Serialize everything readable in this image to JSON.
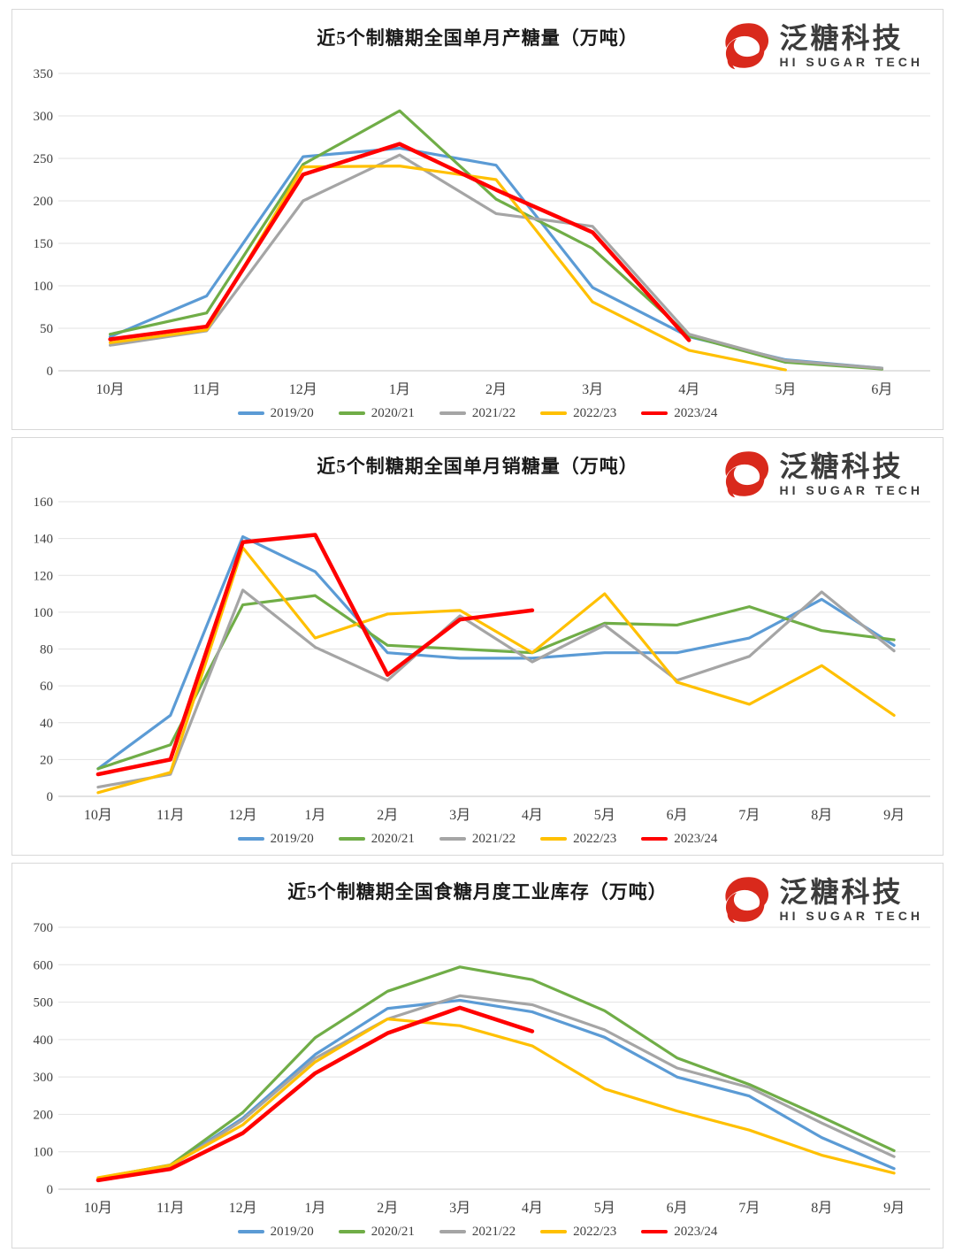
{
  "brand": {
    "name_cn": "泛糖科技",
    "name_en": "HI SUGAR TECH",
    "logo_red": "#d9291c",
    "text_color": "#3c3c3c"
  },
  "palette": {
    "blue": "#5B9BD5",
    "green": "#70AD47",
    "gray": "#A5A5A5",
    "yellow": "#FFC000",
    "red": "#FF0000",
    "gridline": "#e2e2e2",
    "axis_line": "#c6c6c6"
  },
  "chart_data": [
    {
      "type": "line",
      "title": "近5个制糖期全国单月产糖量（万吨）",
      "categories": [
        "10月",
        "11月",
        "12月",
        "1月",
        "2月",
        "3月",
        "4月",
        "5月",
        "6月"
      ],
      "ylim": [
        0,
        350
      ],
      "yticks": [
        0,
        50,
        100,
        150,
        200,
        250,
        300,
        350
      ],
      "grid": true,
      "legend_position": "bottom",
      "series": [
        {
          "name": "2019/20",
          "color": "#5B9BD5",
          "values": [
            40,
            88,
            252,
            262,
            242,
            98,
            40,
            13,
            3
          ]
        },
        {
          "name": "2020/21",
          "color": "#70AD47",
          "values": [
            43,
            68,
            243,
            306,
            202,
            144,
            41,
            10,
            2
          ]
        },
        {
          "name": "2021/22",
          "color": "#A5A5A5",
          "values": [
            30,
            47,
            200,
            254,
            185,
            170,
            43,
            12,
            3
          ]
        },
        {
          "name": "2022/23",
          "color": "#FFC000",
          "values": [
            33,
            48,
            240,
            241,
            225,
            81,
            24,
            1,
            null
          ]
        },
        {
          "name": "2023/24",
          "color": "#FF0000",
          "values": [
            37,
            52,
            231,
            267,
            213,
            163,
            36,
            null,
            null
          ]
        }
      ]
    },
    {
      "type": "line",
      "title": "近5个制糖期全国单月销糖量（万吨）",
      "categories": [
        "10月",
        "11月",
        "12月",
        "1月",
        "2月",
        "3月",
        "4月",
        "5月",
        "6月",
        "7月",
        "8月",
        "9月"
      ],
      "ylim": [
        0,
        160
      ],
      "yticks": [
        0,
        20,
        40,
        60,
        80,
        100,
        120,
        140,
        160
      ],
      "grid": true,
      "legend_position": "bottom",
      "series": [
        {
          "name": "2019/20",
          "color": "#5B9BD5",
          "values": [
            15,
            44,
            141,
            122,
            78,
            75,
            75,
            78,
            78,
            86,
            107,
            82
          ]
        },
        {
          "name": "2020/21",
          "color": "#70AD47",
          "values": [
            15,
            28,
            104,
            109,
            82,
            80,
            78,
            94,
            93,
            103,
            90,
            85
          ]
        },
        {
          "name": "2021/22",
          "color": "#A5A5A5",
          "values": [
            5,
            12,
            112,
            81,
            63,
            98,
            73,
            93,
            63,
            76,
            111,
            79
          ]
        },
        {
          "name": "2022/23",
          "color": "#FFC000",
          "values": [
            2,
            13,
            135,
            86,
            99,
            101,
            78,
            110,
            62,
            50,
            71,
            44
          ]
        },
        {
          "name": "2023/24",
          "color": "#FF0000",
          "values": [
            12,
            20,
            138,
            142,
            66,
            96,
            101,
            null,
            null,
            null,
            null,
            null
          ]
        }
      ]
    },
    {
      "type": "line",
      "title": "近5个制糖期全国食糖月度工业库存（万吨）",
      "categories": [
        "10月",
        "11月",
        "12月",
        "1月",
        "2月",
        "3月",
        "4月",
        "5月",
        "6月",
        "7月",
        "8月",
        "9月"
      ],
      "ylim": [
        0,
        700
      ],
      "yticks": [
        0,
        100,
        200,
        300,
        400,
        500,
        600,
        700
      ],
      "grid": true,
      "legend_position": "bottom",
      "series": [
        {
          "name": "2019/20",
          "color": "#5B9BD5",
          "values": [
            28,
            62,
            190,
            360,
            483,
            505,
            474,
            406,
            300,
            249,
            138,
            55
          ]
        },
        {
          "name": "2020/21",
          "color": "#70AD47",
          "values": [
            30,
            65,
            205,
            405,
            529,
            594,
            560,
            477,
            351,
            280,
            193,
            103
          ]
        },
        {
          "name": "2021/22",
          "color": "#A5A5A5",
          "values": [
            28,
            60,
            185,
            350,
            455,
            517,
            493,
            426,
            324,
            272,
            177,
            87
          ]
        },
        {
          "name": "2022/23",
          "color": "#FFC000",
          "values": [
            31,
            64,
            172,
            340,
            455,
            437,
            383,
            268,
            209,
            158,
            91,
            43
          ]
        },
        {
          "name": "2023/24",
          "color": "#FF0000",
          "values": [
            24,
            54,
            150,
            310,
            417,
            485,
            422,
            null,
            null,
            null,
            null,
            null
          ]
        }
      ]
    }
  ]
}
